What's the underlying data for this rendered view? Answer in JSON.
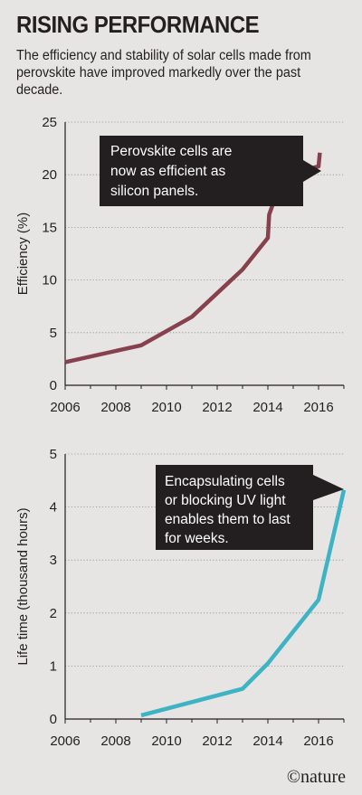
{
  "header": {
    "title": "RISING PERFORMANCE",
    "subtitle": "The efficiency and stability of solar cells made from perovskite have improved markedly over the past decade."
  },
  "credit": "©nature",
  "chart_data": [
    {
      "type": "line",
      "title": "",
      "xlabel": "",
      "ylabel": "Efficiency (%)",
      "xlim": [
        2006,
        2017
      ],
      "ylim": [
        0,
        25
      ],
      "xticks": [
        2006,
        2008,
        2010,
        2012,
        2014,
        2016
      ],
      "yticks": [
        0,
        5,
        10,
        15,
        20,
        25
      ],
      "grid": "horizontal",
      "color": "#86404e",
      "series": [
        {
          "x": [
            2006,
            2009,
            2011,
            2013,
            2014,
            2014.05,
            2014.3,
            2014.9,
            2016,
            2016.05
          ],
          "y": [
            2.2,
            3.8,
            6.5,
            11,
            14,
            16.2,
            17.9,
            20.1,
            20.8,
            22.1
          ]
        }
      ],
      "annotation": {
        "lines": [
          "Perovskite cells are",
          "now as efficient as",
          "silicon panels."
        ]
      }
    },
    {
      "type": "line",
      "title": "",
      "xlabel": "",
      "ylabel": "Life time (thousand hours)",
      "xlim": [
        2006,
        2017
      ],
      "ylim": [
        0,
        5
      ],
      "xticks": [
        2006,
        2008,
        2010,
        2012,
        2014,
        2016
      ],
      "yticks": [
        0,
        1,
        2,
        3,
        4,
        5
      ],
      "grid": "horizontal",
      "color": "#3eb3c4",
      "series": [
        {
          "x": [
            2009,
            2013,
            2014,
            2015,
            2016,
            2017
          ],
          "y": [
            0.07,
            0.57,
            1.05,
            1.65,
            2.25,
            4.32
          ]
        }
      ],
      "annotation": {
        "lines": [
          "Encapsulating cells",
          "or blocking UV light",
          "enables them to last",
          "for weeks."
        ]
      }
    }
  ]
}
